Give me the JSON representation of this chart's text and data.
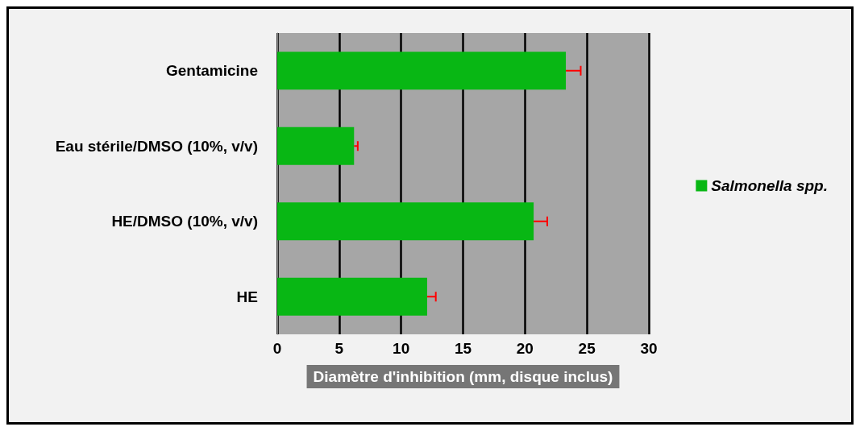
{
  "chart_data": {
    "type": "bar",
    "orientation": "horizontal",
    "xlabel": "Diamètre d'inhibition (mm, disque inclus)",
    "categories": [
      "Gentamicine",
      "Eau stérile/DMSO (10%, v/v)",
      "HE/DMSO (10%, v/v)",
      "HE"
    ],
    "series": [
      {
        "name": "Salmonella spp.",
        "color": "#08b714",
        "values": [
          23.3,
          6.2,
          20.7,
          12.1
        ],
        "errors": [
          [
            23.3,
            24.5
          ],
          [
            6.2,
            6.5
          ],
          [
            20.7,
            21.8
          ],
          [
            12.1,
            12.8
          ]
        ]
      }
    ],
    "xlim": [
      0,
      30
    ],
    "xticks": [
      0,
      5,
      10,
      15,
      20,
      25,
      30
    ],
    "grid": "x",
    "legend": "right"
  }
}
